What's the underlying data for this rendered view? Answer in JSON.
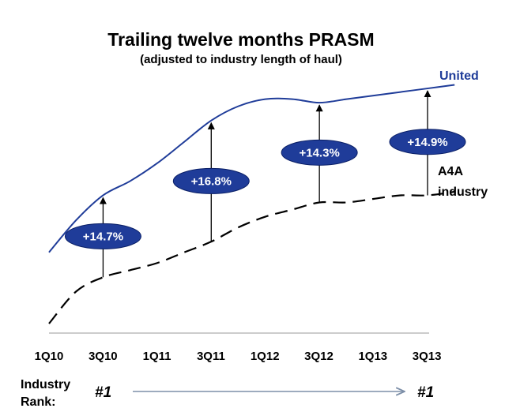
{
  "chart_data": {
    "type": "line",
    "title": "Trailing twelve months PRASM",
    "subtitle": "(adjusted to industry length of haul)",
    "categories": [
      "1Q10",
      "3Q10",
      "1Q11",
      "3Q11",
      "1Q12",
      "3Q12",
      "1Q13",
      "3Q13"
    ],
    "x": [
      0,
      0.5,
      1,
      1.5,
      2,
      2.5,
      3,
      3.5,
      4,
      4.5,
      5,
      5.5,
      6,
      6.5,
      7,
      7.5
    ],
    "series": [
      {
        "name": "United",
        "style": "solid",
        "color": "#1f3c99",
        "values": [
          20,
          29,
          36,
          40,
          45,
          51,
          57,
          61,
          63,
          63,
          62,
          63,
          64,
          65,
          66,
          67
        ]
      },
      {
        "name": "A4A industry",
        "style": "dashed",
        "color": "#000000",
        "values": [
          0,
          9,
          13,
          15,
          17,
          20,
          23,
          27,
          30,
          32,
          34,
          34,
          35,
          36,
          36,
          37
        ]
      }
    ],
    "annotations": [
      {
        "label": "+14.7%",
        "x": 1
      },
      {
        "label": "+16.8%",
        "x": 3
      },
      {
        "label": "+14.3%",
        "x": 5
      },
      {
        "label": "+14.9%",
        "x": 7
      }
    ],
    "ylim": [
      0,
      70
    ],
    "xlim": [
      0,
      7
    ],
    "grid": false,
    "legend": "inline-right"
  },
  "rank": {
    "label_line1": "Industry",
    "label_line2": "Rank:",
    "start": "#1",
    "end": "#1"
  },
  "colors": {
    "united": "#1f3c99",
    "badge_fill": "#1f3c99",
    "badge_stroke": "#0a1f66",
    "industry": "#000000",
    "rank_arrow": "#7d8fa8"
  }
}
